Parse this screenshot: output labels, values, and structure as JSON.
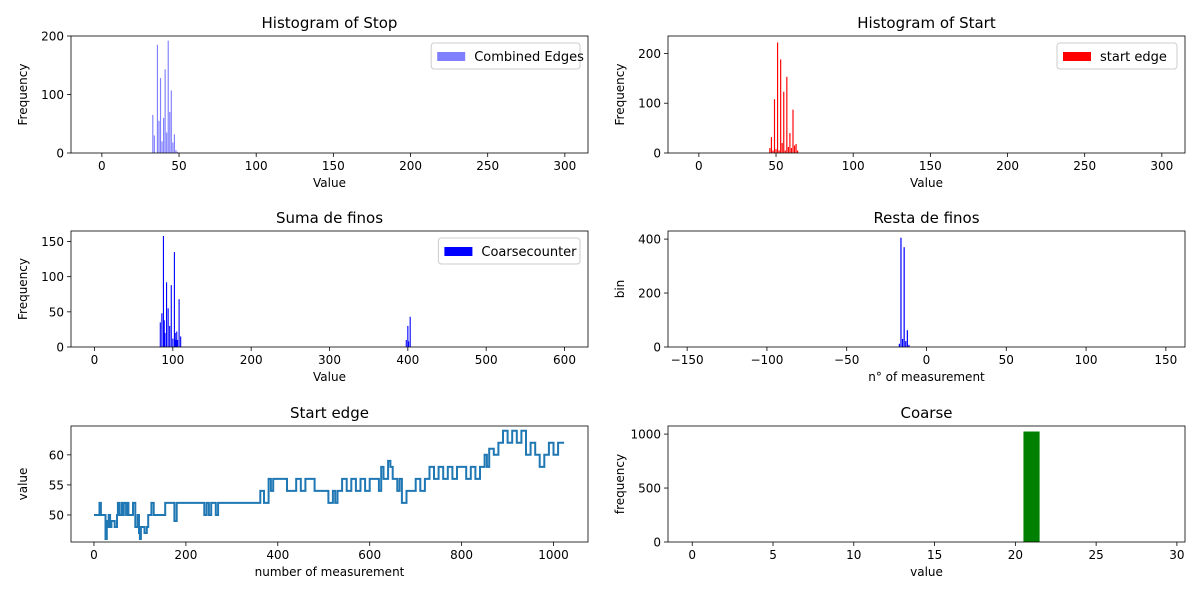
{
  "chart_data": [
    {
      "type": "bar",
      "title": "Histogram of Stop",
      "xlabel": "Value",
      "ylabel": "Frequency",
      "xlim": [
        -20,
        315
      ],
      "ylim": [
        0,
        200
      ],
      "xticks": [
        0,
        50,
        100,
        150,
        200,
        250,
        300
      ],
      "yticks": [
        0,
        100,
        200
      ],
      "legend": "Combined Edges",
      "legend_placement": "top-right",
      "color": "#8080ff",
      "bar_width": 0.75,
      "x": [
        33,
        34,
        36,
        37,
        38,
        39,
        40,
        41,
        42,
        43,
        44,
        45,
        46,
        47,
        48,
        49
      ],
      "values": [
        65,
        30,
        185,
        55,
        128,
        20,
        60,
        143,
        35,
        192,
        70,
        107,
        18,
        32,
        5,
        2
      ]
    },
    {
      "type": "bar",
      "title": "Histogram of Start",
      "xlabel": "Value",
      "ylabel": "Frequency",
      "xlim": [
        -20,
        315
      ],
      "ylim": [
        0,
        235
      ],
      "xticks": [
        0,
        50,
        100,
        150,
        200,
        250,
        300
      ],
      "yticks": [
        0,
        100,
        200
      ],
      "legend": "start edge",
      "legend_placement": "top-right",
      "color": "#ff0000",
      "bar_width": 0.75,
      "x": [
        46,
        47,
        48,
        49,
        50,
        51,
        52,
        53,
        54,
        55,
        56,
        57,
        58,
        59,
        60,
        61,
        62,
        63,
        64
      ],
      "values": [
        10,
        32,
        5,
        108,
        8,
        222,
        5,
        188,
        20,
        123,
        5,
        153,
        12,
        40,
        10,
        87,
        15,
        18,
        5
      ]
    },
    {
      "type": "bar",
      "title": "Suma de finos",
      "xlabel": "Value",
      "ylabel": "Frequency",
      "xlim": [
        -30,
        630
      ],
      "ylim": [
        0,
        165
      ],
      "xticks": [
        0,
        100,
        200,
        300,
        400,
        500,
        600
      ],
      "yticks": [
        0,
        50,
        100,
        150
      ],
      "legend": "Coarsecounter",
      "legend_placement": "top-right",
      "color": "#0000ff",
      "bar_width": 1.4,
      "x": [
        84,
        86,
        88,
        89,
        90,
        92,
        94,
        96,
        98,
        100,
        102,
        103,
        104,
        105,
        106,
        108,
        110,
        398,
        400,
        401,
        403
      ],
      "values": [
        35,
        48,
        158,
        38,
        20,
        92,
        55,
        30,
        88,
        12,
        135,
        20,
        10,
        22,
        10,
        68,
        15,
        10,
        30,
        8,
        43
      ]
    },
    {
      "type": "bar",
      "title": "Resta de finos",
      "xlabel": "n° of measurement",
      "ylabel": "bin",
      "xlim": [
        -162,
        162
      ],
      "ylim": [
        0,
        430
      ],
      "xticks": [
        -150,
        -100,
        -50,
        0,
        50,
        100,
        150
      ],
      "yticks": [
        0,
        200,
        400
      ],
      "color": "#0000ff",
      "bar_width": 0.75,
      "x": [
        -17,
        -16,
        -15,
        -14,
        -13,
        -12,
        -11
      ],
      "values": [
        12,
        405,
        30,
        370,
        22,
        62,
        8
      ]
    },
    {
      "type": "line",
      "title": "Start edge",
      "xlabel": "number of measurement",
      "ylabel": "value",
      "xlim": [
        -50,
        1075
      ],
      "ylim": [
        45.5,
        64.8
      ],
      "xticks": [
        0,
        200,
        400,
        600,
        800,
        1000
      ],
      "yticks": [
        50,
        55,
        60
      ],
      "color": "#1f77b4",
      "x": [
        0,
        10,
        12,
        15,
        18,
        25,
        28,
        30,
        32,
        35,
        38,
        45,
        50,
        52,
        55,
        60,
        62,
        65,
        70,
        72,
        75,
        80,
        85,
        90,
        95,
        98,
        100,
        102,
        105,
        110,
        115,
        118,
        120,
        125,
        130,
        140,
        150,
        155,
        160,
        170,
        175,
        180,
        185,
        190,
        200,
        230,
        240,
        245,
        250,
        255,
        260,
        265,
        270,
        275,
        280,
        300,
        360,
        362,
        370,
        380,
        385,
        390,
        400,
        420,
        440,
        445,
        450,
        460,
        480,
        500,
        510,
        520,
        525,
        530,
        540,
        550,
        560,
        570,
        580,
        590,
        600,
        610,
        620,
        625,
        630,
        640,
        645,
        650,
        660,
        665,
        670,
        680,
        690,
        700,
        710,
        720,
        730,
        740,
        750,
        760,
        770,
        780,
        790,
        800,
        810,
        820,
        830,
        840,
        850,
        855,
        860,
        870,
        880,
        890,
        900,
        910,
        920,
        930,
        940,
        950,
        960,
        970,
        980,
        990,
        1000,
        1010,
        1023
      ],
      "values": [
        50,
        50,
        52,
        50,
        50,
        46,
        49,
        48,
        50,
        48,
        49,
        48,
        50,
        52,
        50,
        52,
        50,
        52,
        50,
        52,
        50,
        50,
        52,
        48,
        50,
        47,
        46,
        48,
        48,
        47,
        48,
        50,
        50,
        52,
        50,
        50,
        50,
        52,
        52,
        52,
        49,
        52,
        52,
        52,
        52,
        52,
        50,
        52,
        50,
        52,
        52,
        50,
        52,
        52,
        52,
        52,
        52,
        54,
        52,
        56,
        54,
        56,
        56,
        54,
        56,
        56,
        54,
        56,
        54,
        54,
        52,
        54,
        52,
        54,
        56,
        54,
        56,
        54,
        56,
        54,
        56,
        56,
        54,
        58,
        56,
        59,
        58,
        56,
        54,
        56,
        52,
        54,
        54,
        56,
        54,
        56,
        58,
        56,
        58,
        56,
        58,
        56,
        58,
        58,
        56,
        58,
        56,
        58,
        60,
        58,
        61,
        60,
        62,
        64,
        62,
        64,
        62,
        64,
        60,
        62,
        60,
        58,
        60,
        62,
        60,
        62,
        62
      ]
    },
    {
      "type": "bar",
      "title": "Coarse",
      "xlabel": "value",
      "ylabel": "frequency",
      "xlim": [
        -1.5,
        30.5
      ],
      "ylim": [
        0,
        1075
      ],
      "xticks": [
        0,
        5,
        10,
        15,
        20,
        25,
        30
      ],
      "yticks": [
        0,
        500,
        1000
      ],
      "color": "#008000",
      "bar_width": 1.0,
      "x": [
        21
      ],
      "values": [
        1024
      ]
    }
  ]
}
